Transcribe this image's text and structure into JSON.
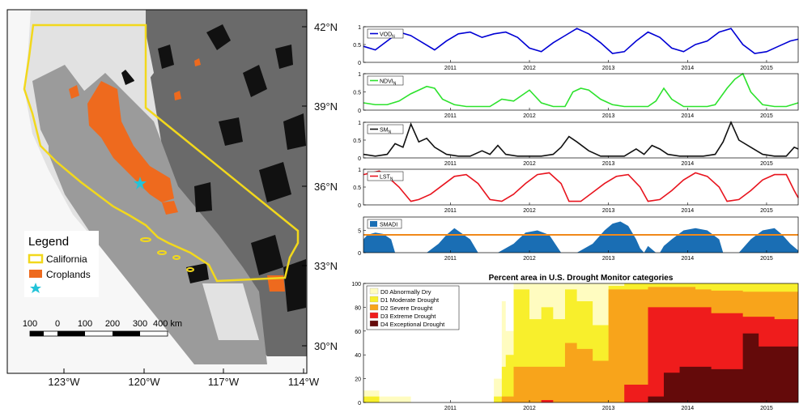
{
  "map": {
    "lat_ticks": [
      "42°N",
      "39°N",
      "36°N",
      "33°N",
      "30°N"
    ],
    "lon_ticks": [
      "123°W",
      "120°W",
      "117°W",
      "114°W"
    ],
    "legend": {
      "title": "Legend",
      "items": [
        {
          "label": "California",
          "kind": "outline",
          "color": "#f2d81c"
        },
        {
          "label": "Croplands",
          "kind": "fill",
          "color": "#ee6a1e"
        },
        {
          "label": "",
          "kind": "star",
          "color": "#22c3d8"
        }
      ]
    },
    "scalebar": {
      "labels": [
        "100",
        "0",
        "100",
        "200",
        "300",
        "400 km"
      ]
    },
    "colors": {
      "ocean": "#f7f7f7",
      "light": "#e2e2e2",
      "mid": "#9b9b9b",
      "dark": "#6a6a6a",
      "black": "#111111"
    }
  },
  "chart_data": [
    {
      "type": "line",
      "series": [
        {
          "name": "VOD",
          "subscript": "N",
          "color": "#0000d4"
        }
      ],
      "ylim": [
        0,
        1
      ],
      "yticks": [
        "0",
        "0.5",
        "1"
      ],
      "xlim": [
        2010.4,
        2015.9
      ],
      "xticks": [
        "2011",
        "2012",
        "2013",
        "2014",
        "2015"
      ],
      "x": [
        2010.4,
        2010.55,
        2010.7,
        2010.85,
        2011.0,
        2011.15,
        2011.3,
        2011.45,
        2011.6,
        2011.75,
        2011.9,
        2012.05,
        2012.2,
        2012.35,
        2012.5,
        2012.65,
        2012.8,
        2012.95,
        2013.1,
        2013.25,
        2013.4,
        2013.55,
        2013.7,
        2013.85,
        2014.0,
        2014.15,
        2014.3,
        2014.45,
        2014.6,
        2014.75,
        2014.9,
        2015.05,
        2015.2,
        2015.35,
        2015.5,
        2015.65,
        2015.8,
        2015.9
      ],
      "y": [
        0.45,
        0.35,
        0.6,
        0.85,
        0.75,
        0.55,
        0.35,
        0.6,
        0.8,
        0.85,
        0.7,
        0.8,
        0.85,
        0.7,
        0.4,
        0.3,
        0.55,
        0.75,
        0.95,
        0.8,
        0.55,
        0.25,
        0.3,
        0.6,
        0.85,
        0.7,
        0.4,
        0.3,
        0.5,
        0.6,
        0.85,
        0.95,
        0.5,
        0.25,
        0.3,
        0.45,
        0.6,
        0.65
      ]
    },
    {
      "type": "line",
      "series": [
        {
          "name": "NDVI",
          "subscript": "N",
          "color": "#2de22d"
        }
      ],
      "ylim": [
        0,
        1
      ],
      "yticks": [
        "0",
        "0.5",
        "1"
      ],
      "xlim": [
        2010.4,
        2015.9
      ],
      "xticks": [
        "2011",
        "2012",
        "2013",
        "2014",
        "2015"
      ],
      "x": [
        2010.4,
        2010.55,
        2010.7,
        2010.85,
        2011.0,
        2011.1,
        2011.2,
        2011.3,
        2011.4,
        2011.55,
        2011.7,
        2011.85,
        2012.0,
        2012.15,
        2012.3,
        2012.4,
        2012.5,
        2012.65,
        2012.8,
        2012.95,
        2013.05,
        2013.15,
        2013.25,
        2013.4,
        2013.55,
        2013.7,
        2013.85,
        2014.0,
        2014.1,
        2014.2,
        2014.3,
        2014.45,
        2014.6,
        2014.75,
        2014.85,
        2015.0,
        2015.1,
        2015.2,
        2015.3,
        2015.45,
        2015.6,
        2015.75,
        2015.9
      ],
      "y": [
        0.2,
        0.15,
        0.15,
        0.25,
        0.45,
        0.55,
        0.65,
        0.6,
        0.3,
        0.15,
        0.1,
        0.1,
        0.1,
        0.3,
        0.25,
        0.4,
        0.55,
        0.2,
        0.1,
        0.1,
        0.5,
        0.6,
        0.55,
        0.3,
        0.15,
        0.1,
        0.1,
        0.1,
        0.25,
        0.6,
        0.3,
        0.1,
        0.1,
        0.1,
        0.15,
        0.6,
        0.85,
        1.0,
        0.5,
        0.15,
        0.1,
        0.1,
        0.2
      ]
    },
    {
      "type": "line",
      "series": [
        {
          "name": "SM",
          "subscript": "N",
          "color": "#111111"
        }
      ],
      "ylim": [
        0,
        1
      ],
      "yticks": [
        "0",
        "0.5",
        "1"
      ],
      "xlim": [
        2010.4,
        2015.9
      ],
      "xticks": [
        "2011",
        "2012",
        "2013",
        "2014",
        "2015"
      ],
      "x": [
        2010.4,
        2010.55,
        2010.7,
        2010.8,
        2010.9,
        2011.0,
        2011.1,
        2011.2,
        2011.3,
        2011.45,
        2011.6,
        2011.75,
        2011.9,
        2012.0,
        2012.1,
        2012.2,
        2012.35,
        2012.5,
        2012.65,
        2012.8,
        2012.9,
        2013.0,
        2013.1,
        2013.25,
        2013.4,
        2013.55,
        2013.7,
        2013.85,
        2013.95,
        2014.05,
        2014.15,
        2014.25,
        2014.4,
        2014.55,
        2014.7,
        2014.85,
        2014.95,
        2015.05,
        2015.15,
        2015.3,
        2015.45,
        2015.6,
        2015.75,
        2015.85,
        2015.9
      ],
      "y": [
        0.1,
        0.05,
        0.1,
        0.4,
        0.3,
        0.95,
        0.45,
        0.55,
        0.3,
        0.1,
        0.05,
        0.05,
        0.2,
        0.1,
        0.35,
        0.1,
        0.05,
        0.05,
        0.05,
        0.1,
        0.3,
        0.6,
        0.45,
        0.2,
        0.05,
        0.05,
        0.05,
        0.25,
        0.1,
        0.35,
        0.25,
        0.1,
        0.05,
        0.05,
        0.05,
        0.1,
        0.45,
        1.0,
        0.5,
        0.3,
        0.1,
        0.05,
        0.05,
        0.3,
        0.25
      ]
    },
    {
      "type": "line",
      "series": [
        {
          "name": "LST",
          "subscript": "N",
          "color": "#e8141e"
        }
      ],
      "ylim": [
        0,
        1
      ],
      "yticks": [
        "0",
        "0.5",
        "1"
      ],
      "xlim": [
        2010.4,
        2015.9
      ],
      "xticks": [
        "2011",
        "2012",
        "2013",
        "2014",
        "2015"
      ],
      "x": [
        2010.4,
        2010.5,
        2010.6,
        2010.7,
        2010.85,
        2011.0,
        2011.1,
        2011.25,
        2011.4,
        2011.55,
        2011.7,
        2011.85,
        2012.0,
        2012.15,
        2012.3,
        2012.45,
        2012.6,
        2012.75,
        2012.9,
        2013.0,
        2013.15,
        2013.3,
        2013.45,
        2013.6,
        2013.75,
        2013.9,
        2014.0,
        2014.15,
        2014.3,
        2014.45,
        2014.6,
        2014.75,
        2014.9,
        2015.0,
        2015.15,
        2015.3,
        2015.45,
        2015.6,
        2015.75,
        2015.85,
        2015.9
      ],
      "y": [
        0.85,
        0.9,
        0.95,
        0.8,
        0.5,
        0.1,
        0.15,
        0.3,
        0.55,
        0.8,
        0.85,
        0.6,
        0.15,
        0.1,
        0.3,
        0.6,
        0.85,
        0.9,
        0.6,
        0.1,
        0.1,
        0.35,
        0.6,
        0.8,
        0.85,
        0.5,
        0.1,
        0.15,
        0.4,
        0.7,
        0.9,
        0.8,
        0.5,
        0.1,
        0.15,
        0.4,
        0.7,
        0.85,
        0.85,
        0.4,
        0.2
      ]
    },
    {
      "type": "area",
      "series": [
        {
          "name": "SMADI",
          "color": "#1a6eb4"
        }
      ],
      "threshold": {
        "value": 4,
        "color": "#f0891a"
      },
      "ylim": [
        0,
        8
      ],
      "yticks": [
        "0",
        "5"
      ],
      "xlim": [
        2010.4,
        2015.9
      ],
      "xticks": [
        "2011",
        "2012",
        "2013",
        "2014",
        "2015"
      ],
      "x": [
        2010.4,
        2010.45,
        2010.55,
        2010.65,
        2010.75,
        2010.8,
        2011.05,
        2011.2,
        2011.35,
        2011.45,
        2011.55,
        2011.75,
        2011.85,
        2012.0,
        2012.1,
        2012.3,
        2012.45,
        2012.6,
        2012.75,
        2012.9,
        2013.1,
        2013.3,
        2013.45,
        2013.55,
        2013.65,
        2013.75,
        2013.85,
        2013.9,
        2013.95,
        2014.0,
        2014.1,
        2014.15,
        2014.2,
        2014.3,
        2014.45,
        2014.6,
        2014.75,
        2014.9,
        2014.95,
        2015.15,
        2015.3,
        2015.45,
        2015.6,
        2015.7,
        2015.8,
        2015.9
      ],
      "y": [
        3,
        4,
        4.5,
        4.2,
        3,
        0,
        0,
        0,
        2,
        4,
        5.5,
        3,
        0,
        0,
        0,
        2,
        4.5,
        5,
        4,
        0,
        0,
        2,
        5,
        6.5,
        7,
        6,
        3,
        1,
        0,
        1.5,
        0,
        0,
        1.5,
        3,
        5,
        5.5,
        5,
        3,
        0,
        0,
        3,
        5,
        5.5,
        4,
        2,
        0.5
      ]
    },
    {
      "type": "area",
      "title": "Percent area in U.S. Drought Monitor categories",
      "ylim": [
        0,
        100
      ],
      "yticks": [
        "0",
        "20",
        "40",
        "60",
        "80",
        "100"
      ],
      "xlim": [
        2010.4,
        2015.9
      ],
      "xticks": [
        "2011",
        "2012",
        "2013",
        "2014",
        "2015"
      ],
      "x": [
        2010.4,
        2010.6,
        2011.0,
        2011.5,
        2011.95,
        2012.05,
        2012.15,
        2012.2,
        2012.3,
        2012.5,
        2012.65,
        2012.8,
        2012.95,
        2013.1,
        2013.3,
        2013.5,
        2013.7,
        2013.9,
        2014.0,
        2014.2,
        2014.4,
        2014.6,
        2014.8,
        2015.0,
        2015.2,
        2015.4,
        2015.6,
        2015.9
      ],
      "series": [
        {
          "name": "D0 Abnormally Dry",
          "color": "#fffcc0",
          "values": [
            10,
            5,
            0,
            0,
            0,
            20,
            85,
            60,
            100,
            100,
            100,
            100,
            100,
            100,
            100,
            100,
            100,
            100,
            100,
            100,
            100,
            100,
            100,
            100,
            100,
            100,
            100,
            100
          ]
        },
        {
          "name": "D1 Moderate Drought",
          "color": "#f8ef2c",
          "values": [
            5,
            0,
            0,
            0,
            0,
            5,
            30,
            40,
            95,
            70,
            80,
            70,
            95,
            85,
            65,
            98,
            100,
            100,
            100,
            100,
            100,
            100,
            100,
            100,
            100,
            100,
            100,
            100
          ]
        },
        {
          "name": "D2 Severe Drought",
          "color": "#f8a41b",
          "values": [
            0,
            0,
            0,
            0,
            0,
            0,
            5,
            5,
            30,
            30,
            30,
            30,
            50,
            45,
            35,
            95,
            95,
            95,
            97,
            97,
            97,
            95,
            94,
            94,
            93,
            93,
            93,
            93
          ]
        },
        {
          "name": "D3 Extreme Drought",
          "color": "#ef1c1c",
          "values": [
            0,
            0,
            0,
            0,
            0,
            0,
            0,
            0,
            0,
            0,
            2,
            0,
            0,
            0,
            0,
            0,
            15,
            15,
            80,
            80,
            80,
            80,
            75,
            75,
            72,
            72,
            70,
            70
          ]
        },
        {
          "name": "D4 Exceptional Drought",
          "color": "#640a0a",
          "values": [
            0,
            0,
            0,
            0,
            0,
            0,
            0,
            0,
            0,
            0,
            0,
            0,
            0,
            0,
            0,
            0,
            0,
            0,
            5,
            25,
            30,
            30,
            28,
            28,
            58,
            47,
            47,
            45
          ]
        }
      ]
    }
  ]
}
